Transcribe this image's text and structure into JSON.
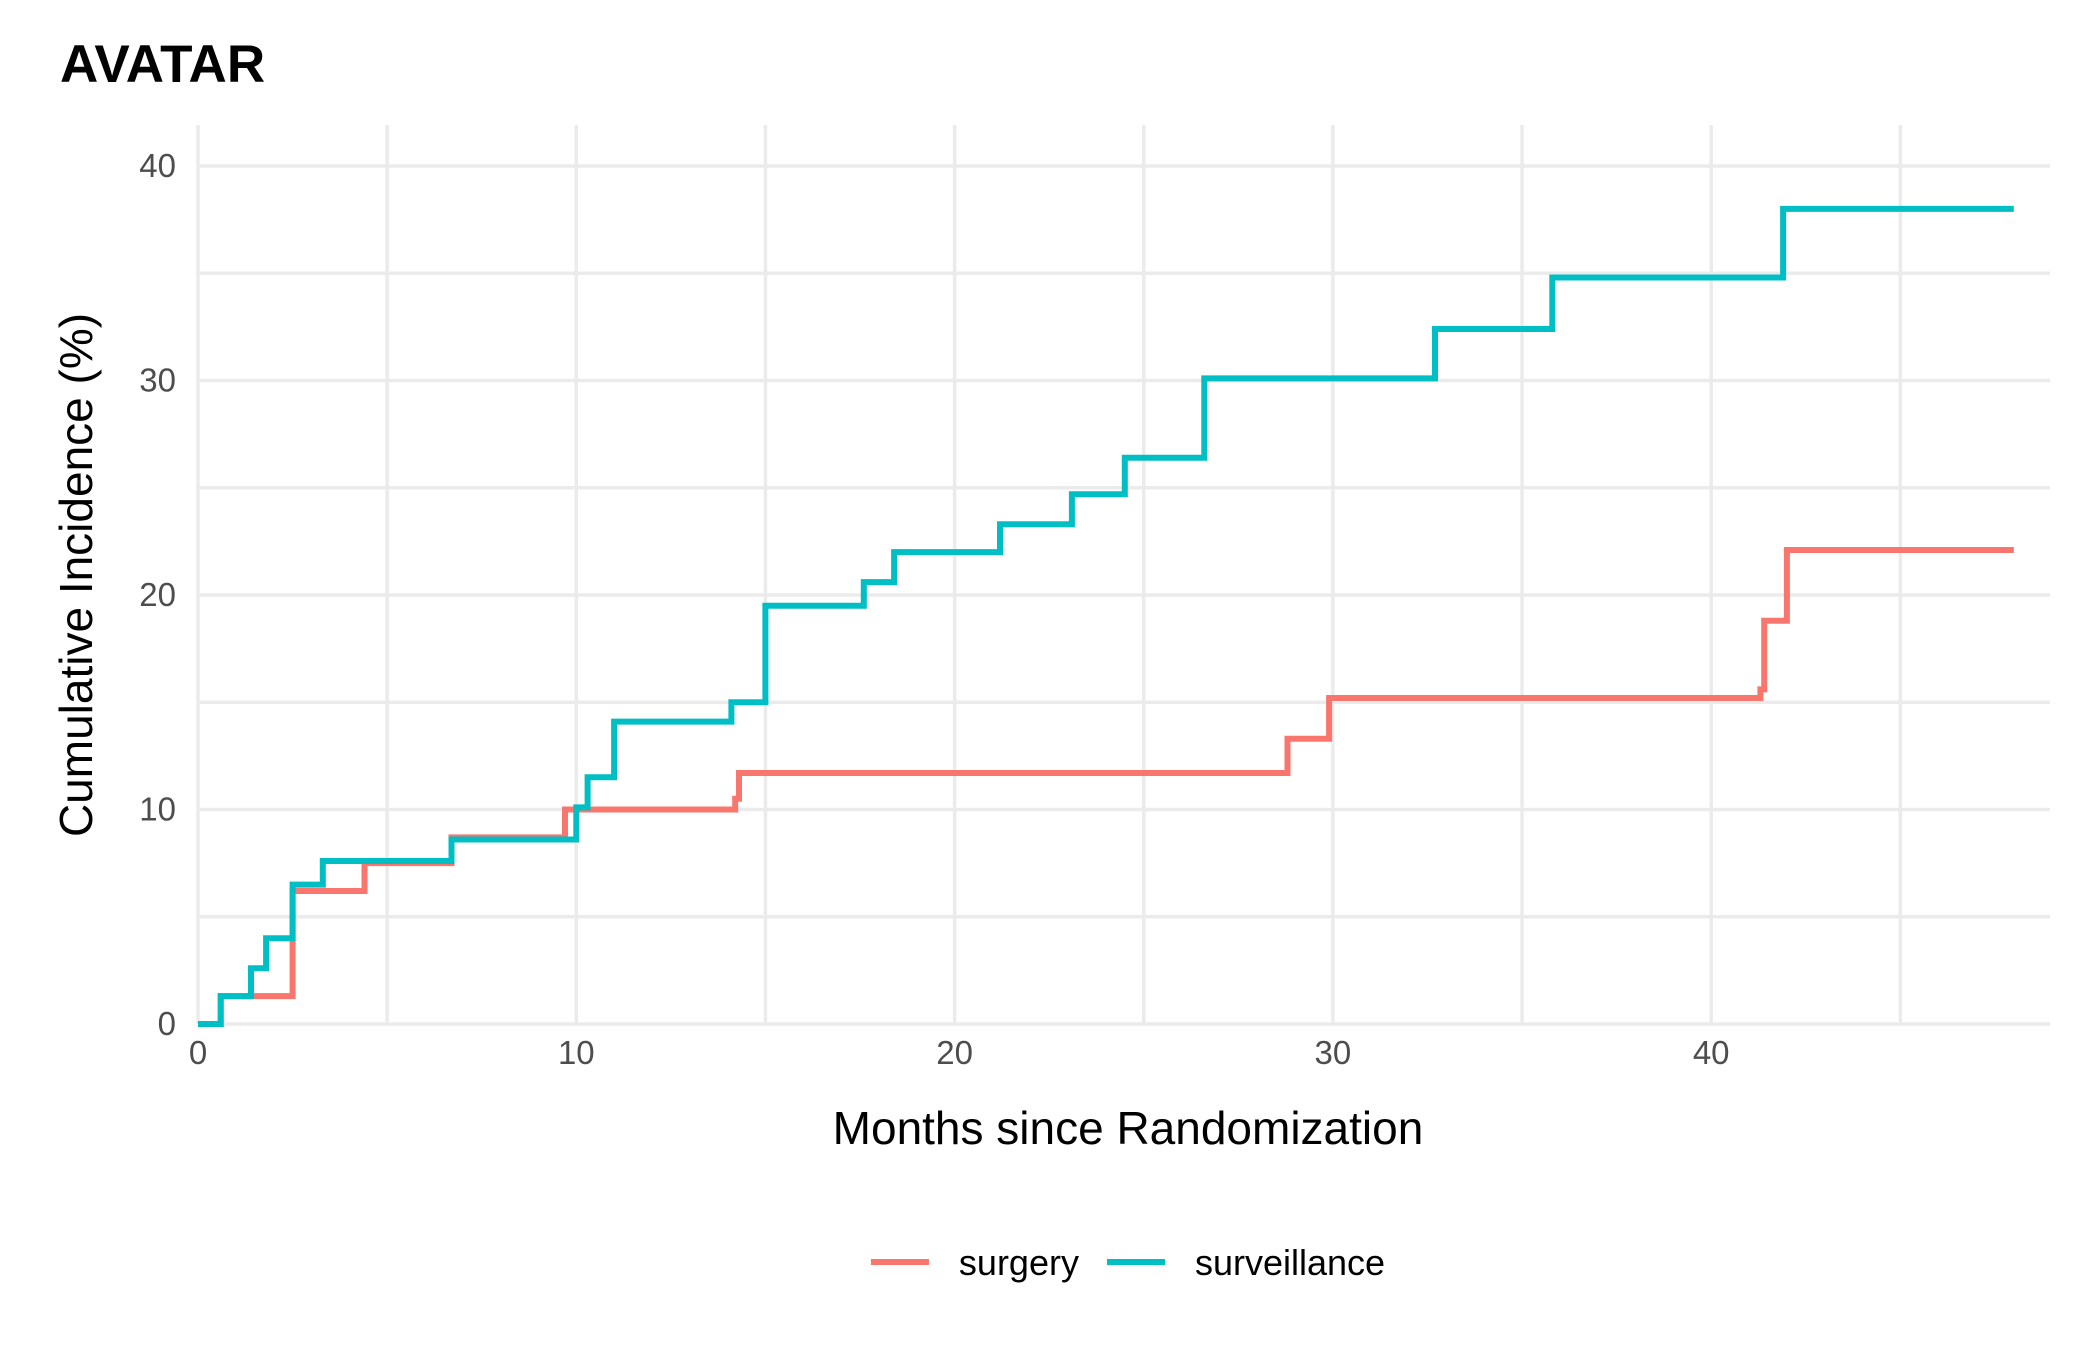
{
  "chart_data": {
    "type": "line",
    "step": true,
    "title": "AVATAR",
    "xlabel": "Months since Randomization",
    "ylabel": "Cumulative Incidence (%)",
    "xlim": [
      0,
      49
    ],
    "ylim": [
      0,
      40
    ],
    "x_ticks": [
      0,
      10,
      20,
      30,
      40
    ],
    "y_ticks": [
      0,
      10,
      20,
      30,
      40
    ],
    "grid": true,
    "legend_position": "bottom",
    "series": [
      {
        "name": "surgery",
        "color": "#F8766D",
        "points": [
          [
            0,
            0
          ],
          [
            0.6,
            1.3
          ],
          [
            1.4,
            1.3
          ],
          [
            2.5,
            6.2
          ],
          [
            4.2,
            6.2
          ],
          [
            4.4,
            7.5
          ],
          [
            6.7,
            8.7
          ],
          [
            9.6,
            8.7
          ],
          [
            9.7,
            10.0
          ],
          [
            14.1,
            10.0
          ],
          [
            14.2,
            10.5
          ],
          [
            14.3,
            11.7
          ],
          [
            28.7,
            11.7
          ],
          [
            28.8,
            13.3
          ],
          [
            29.7,
            13.3
          ],
          [
            29.9,
            15.2
          ],
          [
            41.2,
            15.2
          ],
          [
            41.3,
            15.6
          ],
          [
            41.4,
            18.8
          ],
          [
            41.9,
            18.8
          ],
          [
            42.0,
            22.1
          ],
          [
            48.0,
            22.1
          ]
        ]
      },
      {
        "name": "surveillance",
        "color": "#00BFC4",
        "points": [
          [
            0,
            0
          ],
          [
            0.6,
            1.3
          ],
          [
            1.3,
            1.3
          ],
          [
            1.4,
            2.6
          ],
          [
            1.7,
            2.6
          ],
          [
            1.8,
            4.0
          ],
          [
            2.4,
            4.0
          ],
          [
            2.5,
            6.5
          ],
          [
            3.2,
            6.5
          ],
          [
            3.3,
            7.6
          ],
          [
            6.6,
            7.6
          ],
          [
            6.7,
            8.6
          ],
          [
            9.9,
            8.6
          ],
          [
            10.0,
            10.1
          ],
          [
            10.2,
            10.1
          ],
          [
            10.3,
            11.5
          ],
          [
            10.9,
            11.5
          ],
          [
            11.0,
            14.1
          ],
          [
            14.0,
            14.1
          ],
          [
            14.1,
            15.0
          ],
          [
            14.9,
            15.0
          ],
          [
            15.0,
            19.5
          ],
          [
            17.5,
            19.5
          ],
          [
            17.6,
            20.6
          ],
          [
            18.3,
            20.6
          ],
          [
            18.4,
            22.0
          ],
          [
            21.1,
            22.0
          ],
          [
            21.2,
            23.3
          ],
          [
            23.0,
            23.3
          ],
          [
            23.1,
            24.7
          ],
          [
            24.4,
            24.7
          ],
          [
            24.5,
            26.4
          ],
          [
            26.5,
            26.4
          ],
          [
            26.6,
            30.1
          ],
          [
            32.6,
            30.1
          ],
          [
            32.7,
            32.4
          ],
          [
            35.7,
            32.4
          ],
          [
            35.8,
            34.8
          ],
          [
            41.8,
            34.8
          ],
          [
            41.9,
            38.0
          ],
          [
            48.0,
            38.0
          ]
        ]
      }
    ]
  }
}
